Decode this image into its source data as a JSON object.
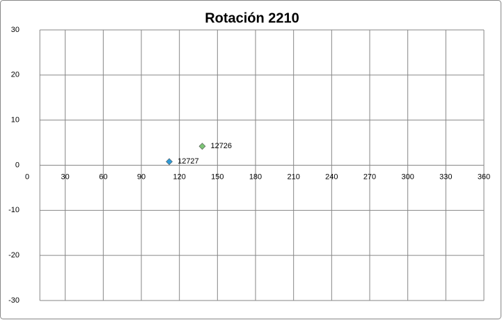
{
  "chart_data": {
    "type": "scatter",
    "title": "Rotación 2210",
    "series": [
      {
        "name": "12727",
        "color": "#2e9ad6",
        "x": [
          112
        ],
        "values": [
          0.8
        ]
      },
      {
        "name": "12726",
        "color": "#7cc576",
        "x": [
          138
        ],
        "values": [
          4.2
        ]
      }
    ],
    "xlim": [
      0,
      360
    ],
    "xticks": [
      0,
      30,
      60,
      90,
      120,
      150,
      180,
      210,
      240,
      270,
      300,
      330,
      360
    ],
    "ylim": [
      -30,
      30
    ],
    "yticks": [
      -30,
      -20,
      -10,
      0,
      10,
      20,
      30
    ],
    "y_axis_at": 10,
    "grid": true
  }
}
